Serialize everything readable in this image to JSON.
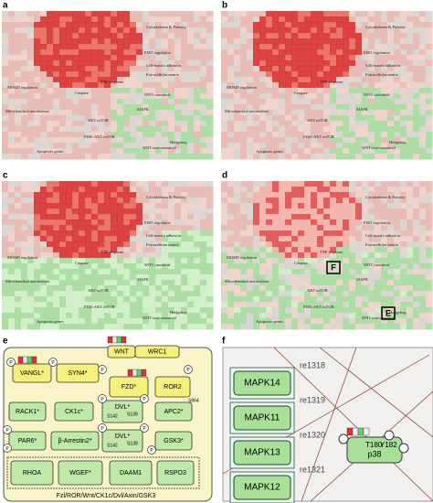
{
  "panels": {
    "labels": [
      "a",
      "b",
      "c",
      "d",
      "e",
      "f"
    ]
  },
  "maps": {
    "labels": [
      "Cytoskeleton & Polarity",
      "EMT regulation",
      "Cell-matrix adhesion",
      "Extracellular matrix",
      "MOMP regulation",
      "Caspase",
      "TNF response",
      "WNT canonical",
      "Mitochondrial metabolism",
      "AKT mTOR",
      "MAPK",
      "PI3K-AKT mTOR",
      "Hedgehog",
      "Apoptosis genes",
      "WNT non-canonical"
    ],
    "d_boxes": [
      "F",
      "E"
    ]
  },
  "panel_e": {
    "nodes": [
      "VANGL*",
      "SYN4*",
      "WNT",
      "WRC1",
      "FZD*",
      "ROR2",
      "RACK1*",
      "CK1c*",
      "DVL*",
      "APC2*",
      "PAR6*",
      "β-Arrestin2*",
      "DVL*",
      "GSK3*",
      "RHOA",
      "WGEF*",
      "DAAM1",
      "RSPO3"
    ],
    "sites": [
      "S142",
      "S139",
      "S864"
    ],
    "phospho": "P",
    "footer": "Fzl/ROR/Wnt/CK1c/Dvl/Axin/GSK3"
  },
  "panel_f": {
    "nodes": [
      "MAPK14",
      "MAPK11",
      "MAPK13",
      "MAPK12"
    ],
    "reactions": [
      "re1318",
      "re1319",
      "re1320",
      "re1321"
    ],
    "target": "p38",
    "sites": [
      "T180",
      "Y182"
    ]
  }
}
